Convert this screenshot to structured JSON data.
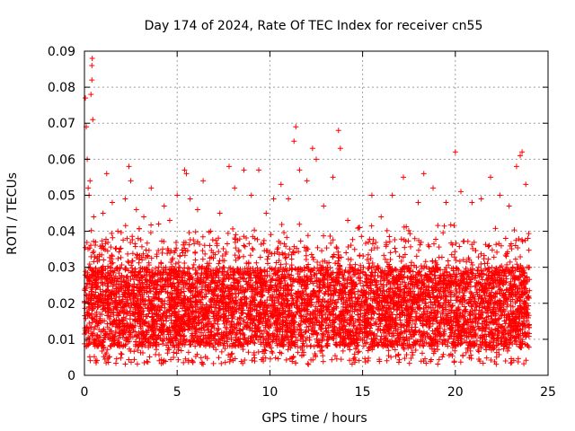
{
  "chart_data": {
    "type": "scatter",
    "title": "Day 174 of 2024, Rate Of TEC Index for receiver cn55",
    "xlabel": "GPS time / hours",
    "ylabel": "ROTI / TECUs",
    "xlim": [
      0,
      25
    ],
    "ylim": [
      0,
      0.09
    ],
    "x_ticks": [
      0,
      5,
      10,
      15,
      20,
      25
    ],
    "x_tick_labels": [
      "0",
      "5",
      "10",
      "15",
      "20",
      "25"
    ],
    "y_ticks": [
      0,
      0.01,
      0.02,
      0.03,
      0.04,
      0.05,
      0.06,
      0.07,
      0.08,
      0.09
    ],
    "y_tick_labels": [
      "0",
      "0.01",
      "0.02",
      "0.03",
      "0.04",
      "0.05",
      "0.06",
      "0.07",
      "0.08",
      "0.09"
    ],
    "grid": true,
    "marker": "+",
    "color": "#ff0000",
    "series": [
      {
        "name": "ROTI",
        "points": [
          [
            0.05,
            0.077
          ],
          [
            0.1,
            0.069
          ],
          [
            0.15,
            0.06
          ],
          [
            0.2,
            0.052
          ],
          [
            0.25,
            0.05
          ],
          [
            0.3,
            0.054
          ],
          [
            0.35,
            0.078
          ],
          [
            0.4,
            0.082
          ],
          [
            0.4,
            0.086
          ],
          [
            0.42,
            0.088
          ],
          [
            0.45,
            0.071
          ],
          [
            0.5,
            0.044
          ],
          [
            0.6,
            0.037
          ],
          [
            0.8,
            0.033
          ],
          [
            1.0,
            0.045
          ],
          [
            1.2,
            0.056
          ],
          [
            1.5,
            0.048
          ],
          [
            1.8,
            0.04
          ],
          [
            2.2,
            0.049
          ],
          [
            2.4,
            0.058
          ],
          [
            2.5,
            0.054
          ],
          [
            2.8,
            0.046
          ],
          [
            3.2,
            0.044
          ],
          [
            3.6,
            0.052
          ],
          [
            4.0,
            0.042
          ],
          [
            4.3,
            0.047
          ],
          [
            4.6,
            0.043
          ],
          [
            5.0,
            0.05
          ],
          [
            5.4,
            0.057
          ],
          [
            5.5,
            0.056
          ],
          [
            5.7,
            0.049
          ],
          [
            6.1,
            0.046
          ],
          [
            6.4,
            0.054
          ],
          [
            6.8,
            0.04
          ],
          [
            7.3,
            0.045
          ],
          [
            7.8,
            0.058
          ],
          [
            8.1,
            0.052
          ],
          [
            8.6,
            0.057
          ],
          [
            9.0,
            0.05
          ],
          [
            9.4,
            0.057
          ],
          [
            9.8,
            0.045
          ],
          [
            10.2,
            0.049
          ],
          [
            10.6,
            0.053
          ],
          [
            11.0,
            0.049
          ],
          [
            11.3,
            0.065
          ],
          [
            11.4,
            0.069
          ],
          [
            11.6,
            0.057
          ],
          [
            12.0,
            0.054
          ],
          [
            12.3,
            0.063
          ],
          [
            12.5,
            0.06
          ],
          [
            12.9,
            0.047
          ],
          [
            13.4,
            0.055
          ],
          [
            13.7,
            0.068
          ],
          [
            13.8,
            0.063
          ],
          [
            14.2,
            0.043
          ],
          [
            14.8,
            0.041
          ],
          [
            15.5,
            0.05
          ],
          [
            16.0,
            0.044
          ],
          [
            16.6,
            0.05
          ],
          [
            17.2,
            0.055
          ],
          [
            18.0,
            0.048
          ],
          [
            18.3,
            0.056
          ],
          [
            18.8,
            0.052
          ],
          [
            19.5,
            0.048
          ],
          [
            20.0,
            0.062
          ],
          [
            20.3,
            0.051
          ],
          [
            20.9,
            0.048
          ],
          [
            21.4,
            0.049
          ],
          [
            21.9,
            0.055
          ],
          [
            22.4,
            0.05
          ],
          [
            22.9,
            0.047
          ],
          [
            23.3,
            0.058
          ],
          [
            23.5,
            0.061
          ],
          [
            23.6,
            0.062
          ],
          [
            23.8,
            0.053
          ]
        ]
      }
    ],
    "density_band": {
      "description_values": "dense cloud of points between ~0.003 and ~0.04 across 0-24 h, mostly 0.008-0.03",
      "x_range": [
        0,
        24
      ],
      "y_core": [
        0.008,
        0.03
      ],
      "y_spread": [
        0.003,
        0.042
      ]
    }
  }
}
